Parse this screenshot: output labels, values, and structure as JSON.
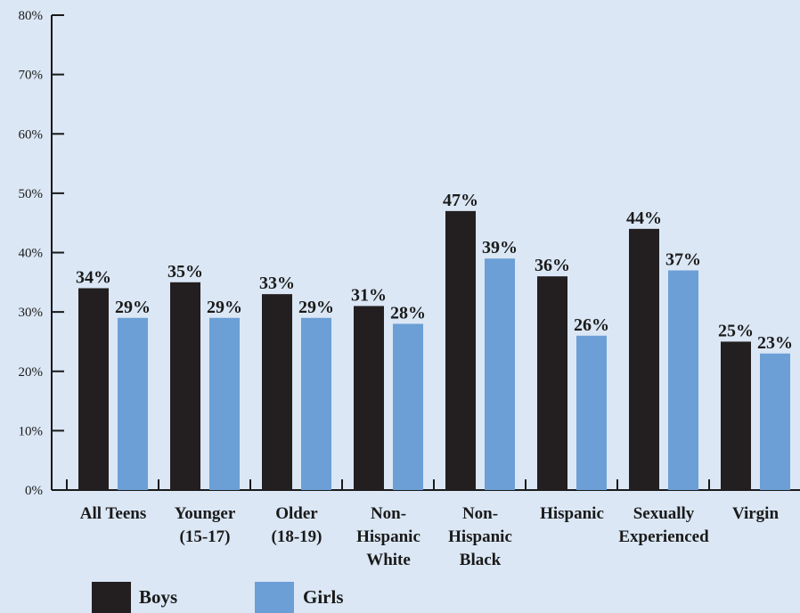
{
  "chart_data": {
    "type": "bar",
    "categories": [
      [
        "All Teens"
      ],
      [
        "Younger",
        "(15-17)"
      ],
      [
        "Older",
        "(18-19)"
      ],
      [
        "Non-",
        "Hispanic",
        "White"
      ],
      [
        "Non-",
        "Hispanic",
        "Black"
      ],
      [
        "Hispanic"
      ],
      [
        "Sexually",
        "Experienced"
      ],
      [
        "Virgin"
      ]
    ],
    "series": [
      {
        "name": "Boys",
        "color": "#231f20",
        "values": [
          34,
          35,
          33,
          31,
          47,
          36,
          44,
          25
        ],
        "labels": [
          "34%",
          "35%",
          "33%",
          "31%",
          "47%",
          "36%",
          "44%",
          "25%"
        ]
      },
      {
        "name": "Girls",
        "color": "#6b9fd6",
        "values": [
          29,
          29,
          29,
          28,
          39,
          26,
          37,
          23
        ],
        "labels": [
          "29%",
          "29%",
          "29%",
          "28%",
          "39%",
          "26%",
          "37%",
          "23%"
        ]
      }
    ],
    "ylim": [
      0,
      80
    ],
    "yticks": [
      0,
      10,
      20,
      30,
      40,
      50,
      60,
      70,
      80
    ],
    "ytick_labels": [
      "0%",
      "10%",
      "20%",
      "30%",
      "40%",
      "50%",
      "60%",
      "70%",
      "80%"
    ],
    "legend_position": "bottom-left",
    "grid": false
  }
}
